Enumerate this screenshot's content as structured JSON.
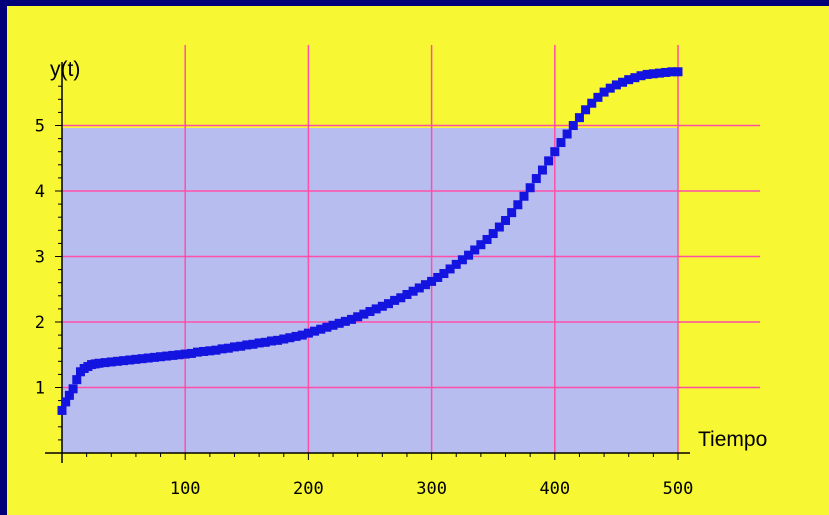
{
  "chart_data": {
    "type": "scatter",
    "title": "",
    "xlabel": "Tiempo",
    "ylabel": "y(t)",
    "xlim": [
      0,
      500
    ],
    "ylim": [
      0,
      5.9
    ],
    "x_ticks": [
      {
        "value": 100,
        "label": "100"
      },
      {
        "value": 200,
        "label": "200"
      },
      {
        "value": 300,
        "label": "300"
      },
      {
        "value": 400,
        "label": "400"
      },
      {
        "value": 500,
        "label": "500"
      }
    ],
    "y_ticks": [
      {
        "value": 1,
        "label": "1"
      },
      {
        "value": 2,
        "label": "2"
      },
      {
        "value": 3,
        "label": "3"
      },
      {
        "value": 4,
        "label": "4"
      },
      {
        "value": 5,
        "label": "5"
      }
    ],
    "grid": true,
    "colors": {
      "background": "#f7f733",
      "plot_fill": "#b8bdf0",
      "grid": "#ff4fa8",
      "markers": "#1414e0",
      "frame": "#00007a"
    },
    "series": [
      {
        "x": [
          0,
          3,
          6,
          9,
          12,
          15,
          18,
          21,
          24,
          27,
          30,
          35,
          40,
          45,
          50,
          55,
          60,
          65,
          70,
          75,
          80,
          85,
          90,
          95,
          100,
          105,
          110,
          115,
          120,
          125,
          130,
          135,
          140,
          145,
          150,
          155,
          160,
          165,
          170,
          175,
          180,
          185,
          190,
          195,
          200,
          205,
          210,
          215,
          220,
          225,
          230,
          235,
          240,
          245,
          250,
          255,
          260,
          265,
          270,
          275,
          280,
          285,
          290,
          295,
          300,
          305,
          310,
          315,
          320,
          325,
          330,
          335,
          340,
          345,
          350,
          355,
          360,
          365,
          370,
          375,
          380,
          385,
          390,
          395,
          400,
          405,
          410,
          415,
          420,
          425,
          430,
          435,
          440,
          445,
          450,
          455,
          460,
          465,
          470,
          475,
          480,
          485,
          490,
          495,
          500
        ],
        "y": [
          0.65,
          0.78,
          0.88,
          0.98,
          1.12,
          1.24,
          1.29,
          1.32,
          1.35,
          1.36,
          1.37,
          1.38,
          1.39,
          1.4,
          1.41,
          1.42,
          1.43,
          1.44,
          1.45,
          1.46,
          1.47,
          1.48,
          1.49,
          1.5,
          1.51,
          1.52,
          1.54,
          1.55,
          1.56,
          1.57,
          1.59,
          1.6,
          1.62,
          1.63,
          1.65,
          1.66,
          1.68,
          1.69,
          1.71,
          1.72,
          1.74,
          1.76,
          1.78,
          1.8,
          1.83,
          1.86,
          1.89,
          1.92,
          1.95,
          1.98,
          2.01,
          2.04,
          2.08,
          2.12,
          2.16,
          2.2,
          2.24,
          2.28,
          2.33,
          2.37,
          2.42,
          2.47,
          2.52,
          2.57,
          2.62,
          2.68,
          2.74,
          2.81,
          2.88,
          2.95,
          3.02,
          3.1,
          3.18,
          3.26,
          3.35,
          3.45,
          3.55,
          3.67,
          3.79,
          3.92,
          4.05,
          4.19,
          4.32,
          4.46,
          4.6,
          4.74,
          4.87,
          5.0,
          5.12,
          5.24,
          5.34,
          5.43,
          5.51,
          5.57,
          5.62,
          5.66,
          5.7,
          5.73,
          5.76,
          5.78,
          5.79,
          5.8,
          5.81,
          5.82,
          5.82
        ]
      }
    ]
  }
}
